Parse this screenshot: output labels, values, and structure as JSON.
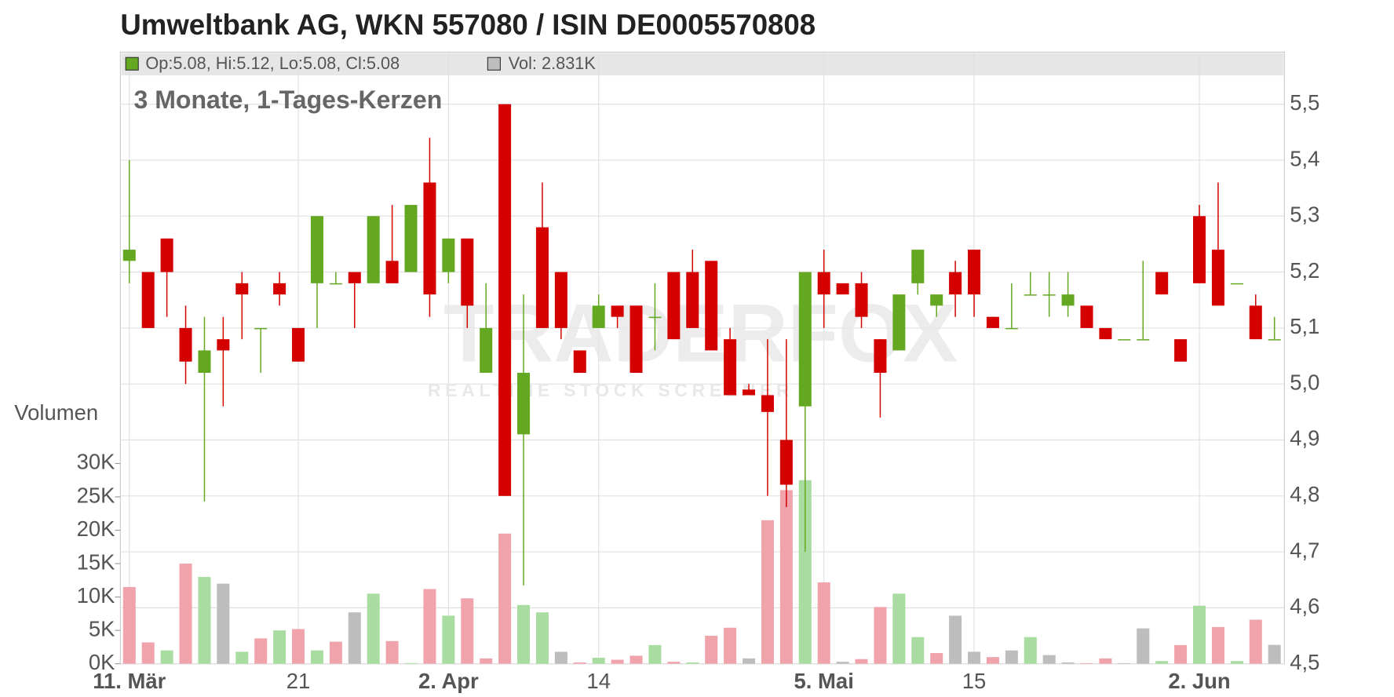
{
  "chart_data": {
    "type": "candlestick",
    "title": "Umweltbank AG, WKN 557080 / ISIN DE0005570808",
    "subtitle": "3 Monate, 1-Tages-Kerzen",
    "legend_price": "Op:5.08, Hi:5.12, Lo:5.08, Cl:5.08",
    "legend_volume": "Vol: 2.831K",
    "watermark": "TRADERFOX",
    "watermark_sub": "REALTIME STOCK SCREENER",
    "volume_axis_label": "Volumen",
    "categories": [
      "11. Mär",
      null,
      null,
      null,
      null,
      null,
      null,
      null,
      null,
      "21",
      null,
      null,
      null,
      null,
      null,
      null,
      null,
      "2. Apr",
      null,
      null,
      null,
      null,
      null,
      null,
      null,
      "14",
      null,
      null,
      null,
      null,
      null,
      null,
      null,
      null,
      null,
      null,
      null,
      "5. Mai",
      null,
      null,
      null,
      null,
      null,
      null,
      null,
      "15",
      null,
      null,
      null,
      null,
      null,
      null,
      null,
      null,
      null,
      null,
      null,
      "2. Jun",
      null,
      null,
      null,
      null
    ],
    "open": [
      5.22,
      5.2,
      5.26,
      5.1,
      5.02,
      5.08,
      5.18,
      5.1,
      5.18,
      5.1,
      5.18,
      5.18,
      5.2,
      5.18,
      5.22,
      5.2,
      5.36,
      5.2,
      5.26,
      5.02,
      5.5,
      4.91,
      5.28,
      5.2,
      5.06,
      5.1,
      5.14,
      5.14,
      5.12,
      5.2,
      5.2,
      5.22,
      5.08,
      4.99,
      4.98,
      4.9,
      4.96,
      5.2,
      5.18,
      5.18,
      5.08,
      5.06,
      5.18,
      5.14,
      5.2,
      5.24,
      5.12,
      5.1,
      5.16,
      5.16,
      5.14,
      5.14,
      5.1,
      5.08,
      5.08,
      5.2,
      5.08,
      5.3,
      5.24,
      5.18,
      5.14,
      5.08
    ],
    "high": [
      5.4,
      5.2,
      5.26,
      5.14,
      5.12,
      5.12,
      5.2,
      5.1,
      5.2,
      5.1,
      5.3,
      5.2,
      5.2,
      5.3,
      5.32,
      5.32,
      5.44,
      5.26,
      5.26,
      5.18,
      5.5,
      5.16,
      5.36,
      5.2,
      5.06,
      5.16,
      5.14,
      5.14,
      5.18,
      5.2,
      5.24,
      5.22,
      5.1,
      5.0,
      5.08,
      5.08,
      5.2,
      5.24,
      5.18,
      5.2,
      5.08,
      5.16,
      5.24,
      5.16,
      5.22,
      5.24,
      5.12,
      5.18,
      5.2,
      5.2,
      5.2,
      5.14,
      5.1,
      5.08,
      5.22,
      5.2,
      5.08,
      5.32,
      5.36,
      5.18,
      5.16,
      5.12
    ],
    "low": [
      5.18,
      5.1,
      5.12,
      5.0,
      4.79,
      4.96,
      5.08,
      5.02,
      5.14,
      5.04,
      5.1,
      5.18,
      5.1,
      5.18,
      5.18,
      5.2,
      5.12,
      5.18,
      5.1,
      5.02,
      4.8,
      4.64,
      5.1,
      5.08,
      5.02,
      5.1,
      5.1,
      5.02,
      5.06,
      5.08,
      5.1,
      5.06,
      4.98,
      4.98,
      4.8,
      4.78,
      4.7,
      5.1,
      5.16,
      5.1,
      4.94,
      5.06,
      5.16,
      5.12,
      5.12,
      5.12,
      5.1,
      5.1,
      5.16,
      5.12,
      5.12,
      5.1,
      5.08,
      5.08,
      5.08,
      5.16,
      5.04,
      5.18,
      5.14,
      5.18,
      5.08,
      5.08
    ],
    "close": [
      5.24,
      5.1,
      5.2,
      5.04,
      5.06,
      5.06,
      5.16,
      5.1,
      5.16,
      5.04,
      5.3,
      5.18,
      5.18,
      5.3,
      5.18,
      5.32,
      5.16,
      5.26,
      5.14,
      5.1,
      4.8,
      5.02,
      5.1,
      5.1,
      5.02,
      5.14,
      5.12,
      5.02,
      5.12,
      5.08,
      5.1,
      5.06,
      4.98,
      4.98,
      4.95,
      4.82,
      5.2,
      5.16,
      5.16,
      5.12,
      5.02,
      5.16,
      5.24,
      5.16,
      5.16,
      5.16,
      5.1,
      5.1,
      5.16,
      5.16,
      5.16,
      5.1,
      5.08,
      5.08,
      5.08,
      5.16,
      5.04,
      5.18,
      5.14,
      5.18,
      5.08,
      5.08
    ],
    "volume": [
      11500,
      3200,
      2000,
      15000,
      13000,
      12000,
      1800,
      3800,
      5000,
      5200,
      2000,
      3300,
      7700,
      10500,
      3400,
      100,
      11200,
      7200,
      9800,
      800,
      19500,
      8800,
      7700,
      1800,
      200,
      900,
      600,
      1200,
      2800,
      300,
      200,
      4200,
      5400,
      800,
      21500,
      26000,
      27500,
      12200,
      300,
      700,
      8500,
      10500,
      4000,
      1600,
      7200,
      1800,
      1000,
      2000,
      4000,
      1300,
      200,
      100,
      800,
      100,
      5300,
      400,
      2800,
      8700,
      5500,
      400,
      6600,
      2831
    ],
    "up_color": "#63a820",
    "down_color": "#d40000",
    "volume_colors": {
      "up": "#a8dca0",
      "down": "#f0a3ab",
      "flat": "#bdbdbd"
    },
    "ylim": [
      4.5,
      5.5
    ],
    "yticks": [
      {
        "value": 4.5,
        "label": "4,5"
      },
      {
        "value": 4.6,
        "label": "4,6"
      },
      {
        "value": 4.7,
        "label": "4,7"
      },
      {
        "value": 4.8,
        "label": "4,8"
      },
      {
        "value": 4.9,
        "label": "4,9"
      },
      {
        "value": 5.0,
        "label": "5,0"
      },
      {
        "value": 5.1,
        "label": "5,1"
      },
      {
        "value": 5.2,
        "label": "5,2"
      },
      {
        "value": 5.3,
        "label": "5,3"
      },
      {
        "value": 5.4,
        "label": "5,4"
      },
      {
        "value": 5.5,
        "label": "5,5"
      }
    ],
    "y2lim": [
      0,
      30000
    ],
    "y2ticks": [
      {
        "value": 0,
        "label": "0K"
      },
      {
        "value": 5000,
        "label": "5K"
      },
      {
        "value": 10000,
        "label": "10K"
      },
      {
        "value": 15000,
        "label": "15K"
      },
      {
        "value": 20000,
        "label": "20K"
      },
      {
        "value": 25000,
        "label": "25K"
      },
      {
        "value": 30000,
        "label": "30K"
      }
    ],
    "grid": true
  }
}
